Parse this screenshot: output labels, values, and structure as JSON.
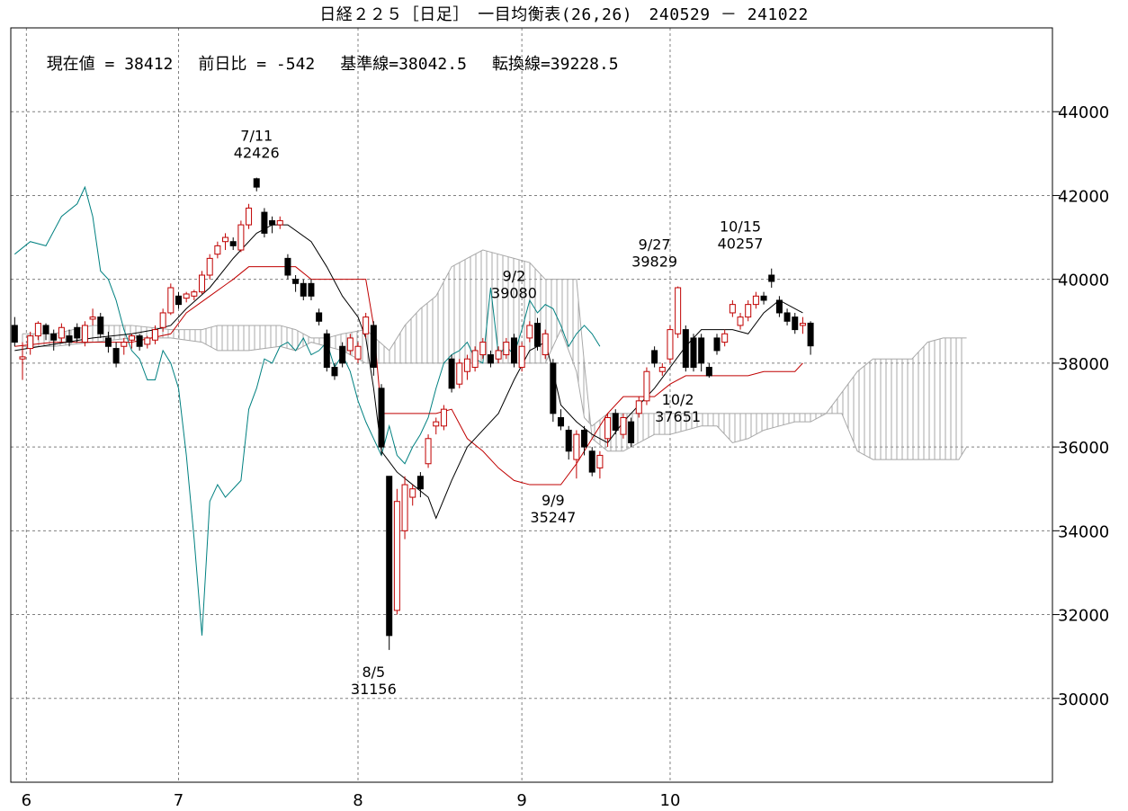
{
  "title": "日経２２５［日足］　一目均衡表(26,26)　240529 － 241022",
  "info": {
    "current": "現在値 = 38412",
    "change": "前日比 = -542",
    "kijun": "基準線=38042.5",
    "tenkan": "転換線=39228.5"
  },
  "colors": {
    "frame": "#000000",
    "grid": "#808080",
    "up_candle": "#c00000",
    "down_candle": "#000000",
    "tenkan": "#000000",
    "kijun": "#c00000",
    "chikou": "#008080",
    "cloud": "#a8a8a8"
  },
  "chart_data": {
    "type": "candlestick",
    "ylim": [
      28000,
      46000
    ],
    "y_ticks": [
      "44000",
      "42000",
      "40000",
      "38000",
      "36000",
      "34000",
      "32000",
      "30000"
    ],
    "x_ticks": [
      {
        "label": "6",
        "index": 1.5
      },
      {
        "label": "7",
        "index": 21
      },
      {
        "label": "8",
        "index": 44
      },
      {
        "label": "9",
        "index": 65
      },
      {
        "label": "10",
        "index": 84
      }
    ],
    "x_range": [
      -0.5,
      133
    ],
    "annotations": [
      {
        "date": "7/11",
        "value": "42426",
        "index": 31,
        "price": 42426,
        "pos": "above"
      },
      {
        "date": "8/5",
        "value": "31156",
        "index": 46,
        "price": 31156,
        "pos": "below"
      },
      {
        "date": "9/2",
        "value": "39080",
        "index": 64,
        "price": 39080,
        "pos": "above"
      },
      {
        "date": "9/9",
        "value": "35247",
        "index": 69,
        "price": 35247,
        "pos": "below"
      },
      {
        "date": "9/27",
        "value": "39829",
        "index": 82,
        "price": 39829,
        "pos": "above"
      },
      {
        "date": "10/2",
        "value": "37651",
        "index": 85,
        "price": 37651,
        "pos": "below"
      },
      {
        "date": "10/15",
        "value": "40257",
        "index": 93,
        "price": 40257,
        "pos": "above"
      }
    ],
    "candles": [
      [
        38900,
        38500,
        39100,
        38400
      ],
      [
        38100,
        38150,
        38500,
        37600
      ],
      [
        38350,
        38650,
        38750,
        38200
      ],
      [
        38650,
        38950,
        39000,
        38550
      ],
      [
        38900,
        38700,
        38950,
        38550
      ],
      [
        38700,
        38550,
        38800,
        38300
      ],
      [
        38600,
        38850,
        38950,
        38500
      ],
      [
        38650,
        38500,
        38800,
        38400
      ],
      [
        38850,
        38600,
        38950,
        38500
      ],
      [
        38500,
        38900,
        39000,
        38400
      ],
      [
        39050,
        39100,
        39300,
        38900
      ],
      [
        39100,
        38700,
        39200,
        38600
      ],
      [
        38600,
        38400,
        38750,
        38250
      ],
      [
        38350,
        38000,
        38500,
        37900
      ],
      [
        38400,
        38500,
        38600,
        38200
      ],
      [
        38550,
        38650,
        38700,
        38350
      ],
      [
        38650,
        38400,
        38700,
        38300
      ],
      [
        38450,
        38600,
        38650,
        38350
      ],
      [
        38550,
        38800,
        38900,
        38450
      ],
      [
        38850,
        39200,
        39300,
        38750
      ],
      [
        39200,
        39800,
        39900,
        39150
      ],
      [
        39600,
        39400,
        39700,
        39300
      ],
      [
        39550,
        39650,
        39700,
        39450
      ],
      [
        39600,
        39700,
        39750,
        39500
      ],
      [
        39700,
        40100,
        40200,
        39650
      ],
      [
        40100,
        40500,
        40600,
        40000
      ],
      [
        40600,
        40800,
        40900,
        40500
      ],
      [
        40900,
        41000,
        41100,
        40700
      ],
      [
        40900,
        40800,
        41000,
        40700
      ],
      [
        40700,
        41300,
        41400,
        40650
      ],
      [
        41300,
        41700,
        41800,
        41200
      ],
      [
        42400,
        42200,
        42426,
        42100
      ],
      [
        41600,
        41100,
        41700,
        41000
      ],
      [
        41400,
        41300,
        41500,
        41100
      ],
      [
        41300,
        41400,
        41500,
        41200
      ],
      [
        40500,
        40100,
        40600,
        40000
      ],
      [
        40000,
        39900,
        40100,
        39700
      ],
      [
        39900,
        39600,
        40000,
        39500
      ],
      [
        39900,
        39600,
        40000,
        39500
      ],
      [
        39200,
        39000,
        39300,
        38900
      ],
      [
        38700,
        37900,
        38800,
        37800
      ],
      [
        37900,
        37700,
        38000,
        37600
      ],
      [
        38400,
        38000,
        38500,
        37900
      ],
      [
        38300,
        38600,
        38700,
        38200
      ],
      [
        38100,
        38400,
        38500,
        38000
      ],
      [
        38700,
        39100,
        39200,
        38600
      ],
      [
        38900,
        37900,
        39000,
        37700
      ],
      [
        37400,
        36000,
        37500,
        35800
      ],
      [
        35300,
        31500,
        35300,
        31156
      ],
      [
        32100,
        34700,
        35000,
        32000
      ],
      [
        34000,
        35100,
        35300,
        33800
      ],
      [
        34800,
        35000,
        35100,
        34600
      ],
      [
        35300,
        35000,
        35400,
        34800
      ],
      [
        35600,
        36200,
        36300,
        35500
      ],
      [
        36500,
        36600,
        36700,
        36300
      ],
      [
        36500,
        36900,
        37000,
        36400
      ],
      [
        38100,
        37400,
        38200,
        37300
      ],
      [
        37500,
        38000,
        38100,
        37400
      ],
      [
        37800,
        38100,
        38200,
        37600
      ],
      [
        37900,
        38300,
        38400,
        37800
      ],
      [
        38200,
        38500,
        38600,
        38100
      ],
      [
        38200,
        38000,
        38300,
        37900
      ],
      [
        38100,
        38300,
        38400,
        38000
      ],
      [
        38200,
        38500,
        38600,
        38100
      ],
      [
        38600,
        38000,
        38700,
        37900
      ],
      [
        37900,
        38400,
        38500,
        37800
      ],
      [
        38600,
        38900,
        39000,
        38500
      ],
      [
        38950,
        38400,
        39080,
        38300
      ],
      [
        38200,
        38700,
        38800,
        38100
      ],
      [
        38000,
        36800,
        38100,
        36600
      ],
      [
        36700,
        36500,
        36900,
        36400
      ],
      [
        36400,
        35900,
        36500,
        35700
      ],
      [
        35700,
        36300,
        36400,
        35247
      ],
      [
        36400,
        36000,
        36500,
        35800
      ],
      [
        35900,
        35400,
        36000,
        35300
      ],
      [
        35500,
        35800,
        35900,
        35247
      ],
      [
        36200,
        36700,
        36800,
        36000
      ],
      [
        36800,
        36400,
        36900,
        36300
      ],
      [
        36300,
        36700,
        36800,
        36200
      ],
      [
        36600,
        36100,
        36700,
        36000
      ],
      [
        36800,
        37100,
        37200,
        36700
      ],
      [
        37100,
        37800,
        37900,
        37000
      ],
      [
        38300,
        38000,
        38400,
        37900
      ],
      [
        37800,
        37900,
        38000,
        37700
      ],
      [
        38100,
        38800,
        38900,
        38000
      ],
      [
        38700,
        39800,
        39829,
        38600
      ],
      [
        38800,
        37900,
        38900,
        37800
      ],
      [
        38600,
        37900,
        38700,
        37800
      ],
      [
        38600,
        38000,
        38700,
        37800
      ],
      [
        37900,
        37700,
        38000,
        37651
      ],
      [
        38600,
        38300,
        38700,
        38200
      ],
      [
        38500,
        38700,
        38800,
        38400
      ],
      [
        39200,
        39400,
        39500,
        39100
      ],
      [
        38900,
        39100,
        39200,
        38800
      ],
      [
        39100,
        39400,
        39500,
        39000
      ],
      [
        39400,
        39600,
        39700,
        39300
      ],
      [
        39600,
        39500,
        39700,
        39400
      ],
      [
        40100,
        39950,
        40257,
        39800
      ],
      [
        39500,
        39200,
        39600,
        39100
      ],
      [
        39200,
        39000,
        39300,
        38900
      ],
      [
        39100,
        38800,
        39200,
        38700
      ],
      [
        38900,
        38950,
        39100,
        38700
      ],
      [
        38954,
        38412,
        39000,
        38200
      ]
    ],
    "tenkan": [
      [
        0,
        38300
      ],
      [
        5,
        38450
      ],
      [
        10,
        38600
      ],
      [
        15,
        38700
      ],
      [
        18,
        38800
      ],
      [
        20,
        38900
      ],
      [
        22,
        39300
      ],
      [
        25,
        39800
      ],
      [
        28,
        40500
      ],
      [
        31,
        41100
      ],
      [
        33,
        41300
      ],
      [
        35,
        41300
      ],
      [
        38,
        40900
      ],
      [
        40,
        40300
      ],
      [
        42,
        39600
      ],
      [
        44,
        39100
      ],
      [
        45,
        38600
      ],
      [
        46,
        37400
      ],
      [
        47,
        35900
      ],
      [
        49,
        35400
      ],
      [
        51,
        35100
      ],
      [
        53,
        34800
      ],
      [
        54,
        34300
      ],
      [
        56,
        35200
      ],
      [
        58,
        36000
      ],
      [
        60,
        36400
      ],
      [
        62,
        36800
      ],
      [
        64,
        37600
      ],
      [
        66,
        38300
      ],
      [
        68,
        38500
      ],
      [
        69,
        37800
      ],
      [
        70,
        37000
      ],
      [
        72,
        36600
      ],
      [
        74,
        36300
      ],
      [
        76,
        36100
      ],
      [
        78,
        36600
      ],
      [
        80,
        37000
      ],
      [
        82,
        37400
      ],
      [
        84,
        37900
      ],
      [
        86,
        38400
      ],
      [
        88,
        38800
      ],
      [
        92,
        38800
      ],
      [
        94,
        38700
      ],
      [
        96,
        39200
      ],
      [
        98,
        39500
      ],
      [
        101,
        39200
      ]
    ],
    "kijun": [
      [
        0,
        38400
      ],
      [
        5,
        38500
      ],
      [
        10,
        38500
      ],
      [
        15,
        38500
      ],
      [
        20,
        38700
      ],
      [
        22,
        39200
      ],
      [
        25,
        39600
      ],
      [
        28,
        40000
      ],
      [
        30,
        40300
      ],
      [
        33,
        40300
      ],
      [
        36,
        40300
      ],
      [
        38,
        40000
      ],
      [
        40,
        40000
      ],
      [
        43,
        40000
      ],
      [
        45,
        40000
      ],
      [
        46,
        38900
      ],
      [
        47,
        36800
      ],
      [
        50,
        36800
      ],
      [
        52,
        36800
      ],
      [
        54,
        36800
      ],
      [
        56,
        36900
      ],
      [
        58,
        36200
      ],
      [
        60,
        35900
      ],
      [
        62,
        35500
      ],
      [
        64,
        35200
      ],
      [
        66,
        35100
      ],
      [
        68,
        35100
      ],
      [
        70,
        35100
      ],
      [
        72,
        35600
      ],
      [
        74,
        36200
      ],
      [
        76,
        36800
      ],
      [
        78,
        37200
      ],
      [
        80,
        37200
      ],
      [
        82,
        37200
      ],
      [
        84,
        37500
      ],
      [
        86,
        37700
      ],
      [
        88,
        37700
      ],
      [
        92,
        37700
      ],
      [
        94,
        37700
      ],
      [
        96,
        37800
      ],
      [
        98,
        37800
      ],
      [
        100,
        37800
      ],
      [
        101,
        38000
      ]
    ],
    "chikou": [
      [
        0,
        40600
      ],
      [
        2,
        40900
      ],
      [
        4,
        40800
      ],
      [
        6,
        41500
      ],
      [
        8,
        41800
      ],
      [
        9,
        42200
      ],
      [
        10,
        41500
      ],
      [
        11,
        40200
      ],
      [
        12,
        40000
      ],
      [
        13,
        39500
      ],
      [
        14,
        38800
      ],
      [
        15,
        38300
      ],
      [
        16,
        38100
      ],
      [
        17,
        37600
      ],
      [
        18,
        37600
      ],
      [
        19,
        38300
      ],
      [
        20,
        38000
      ],
      [
        21,
        37400
      ],
      [
        22,
        35800
      ],
      [
        23,
        33800
      ],
      [
        24,
        31500
      ],
      [
        25,
        34700
      ],
      [
        26,
        35100
      ],
      [
        27,
        34800
      ],
      [
        28,
        35000
      ],
      [
        29,
        35200
      ],
      [
        30,
        36900
      ],
      [
        31,
        37400
      ],
      [
        32,
        38100
      ],
      [
        33,
        38000
      ],
      [
        34,
        38400
      ],
      [
        35,
        38500
      ],
      [
        36,
        38300
      ],
      [
        37,
        38600
      ],
      [
        38,
        38200
      ],
      [
        39,
        38300
      ],
      [
        40,
        38500
      ],
      [
        41,
        37900
      ],
      [
        42,
        38200
      ],
      [
        43,
        37800
      ],
      [
        44,
        37100
      ],
      [
        45,
        36600
      ],
      [
        46,
        36200
      ],
      [
        47,
        35800
      ],
      [
        48,
        36500
      ],
      [
        49,
        35800
      ],
      [
        50,
        35600
      ],
      [
        51,
        36000
      ],
      [
        52,
        36300
      ],
      [
        53,
        36700
      ],
      [
        54,
        37400
      ],
      [
        55,
        38000
      ],
      [
        56,
        38200
      ],
      [
        57,
        38300
      ],
      [
        58,
        38500
      ],
      [
        59,
        38100
      ],
      [
        60,
        38000
      ],
      [
        61,
        39800
      ],
      [
        62,
        38200
      ],
      [
        63,
        38400
      ],
      [
        64,
        38200
      ],
      [
        65,
        38800
      ],
      [
        66,
        39500
      ],
      [
        67,
        39200
      ],
      [
        68,
        39400
      ],
      [
        69,
        39300
      ],
      [
        70,
        38900
      ],
      [
        71,
        38400
      ],
      [
        72,
        38700
      ],
      [
        73,
        38900
      ],
      [
        74,
        38700
      ],
      [
        75,
        38400
      ]
    ],
    "cloud": [
      [
        1,
        38700,
        38400
      ],
      [
        5,
        38700,
        38400
      ],
      [
        10,
        38900,
        38500
      ],
      [
        15,
        38900,
        38600
      ],
      [
        20,
        38800,
        38600
      ],
      [
        24,
        38800,
        38500
      ],
      [
        26,
        38900,
        38300
      ],
      [
        30,
        38900,
        38300
      ],
      [
        34,
        38900,
        38400
      ],
      [
        36,
        38800,
        38300
      ],
      [
        38,
        38600,
        38500
      ],
      [
        40,
        38600,
        38400
      ],
      [
        42,
        38700,
        38300
      ],
      [
        45,
        38800,
        38000
      ],
      [
        48,
        38300,
        38000
      ],
      [
        50,
        38900,
        38000
      ],
      [
        52,
        39300,
        38000
      ],
      [
        54,
        39600,
        38000
      ],
      [
        56,
        40300,
        38000
      ],
      [
        58,
        40500,
        38000
      ],
      [
        60,
        40700,
        38000
      ],
      [
        62,
        40600,
        38000
      ],
      [
        64,
        40500,
        38000
      ],
      [
        66,
        40400,
        38000
      ],
      [
        68,
        40000,
        38000
      ],
      [
        70,
        40000,
        38800
      ],
      [
        72,
        40000,
        37800
      ],
      [
        73,
        38000,
        36700
      ],
      [
        74,
        36200,
        36500
      ],
      [
        76,
        35900,
        36800
      ],
      [
        78,
        35900,
        36800
      ],
      [
        80,
        36100,
        36800
      ],
      [
        82,
        36300,
        36800
      ],
      [
        84,
        36300,
        36800
      ],
      [
        86,
        36400,
        36800
      ],
      [
        88,
        36500,
        36800
      ],
      [
        90,
        36500,
        36800
      ],
      [
        92,
        36100,
        36800
      ],
      [
        94,
        36200,
        36800
      ],
      [
        96,
        36400,
        36800
      ],
      [
        98,
        36500,
        36800
      ],
      [
        100,
        36600,
        36800
      ],
      [
        102,
        36600,
        36800
      ],
      [
        104,
        36800,
        36800
      ],
      [
        106,
        37300,
        36800
      ],
      [
        108,
        37800,
        35900
      ],
      [
        110,
        38100,
        35700
      ],
      [
        113,
        38100,
        35700
      ],
      [
        115,
        38100,
        35700
      ],
      [
        117,
        38500,
        35700
      ],
      [
        119,
        38600,
        35700
      ],
      [
        121,
        38600,
        35700
      ],
      [
        122,
        38600,
        36000
      ]
    ]
  }
}
